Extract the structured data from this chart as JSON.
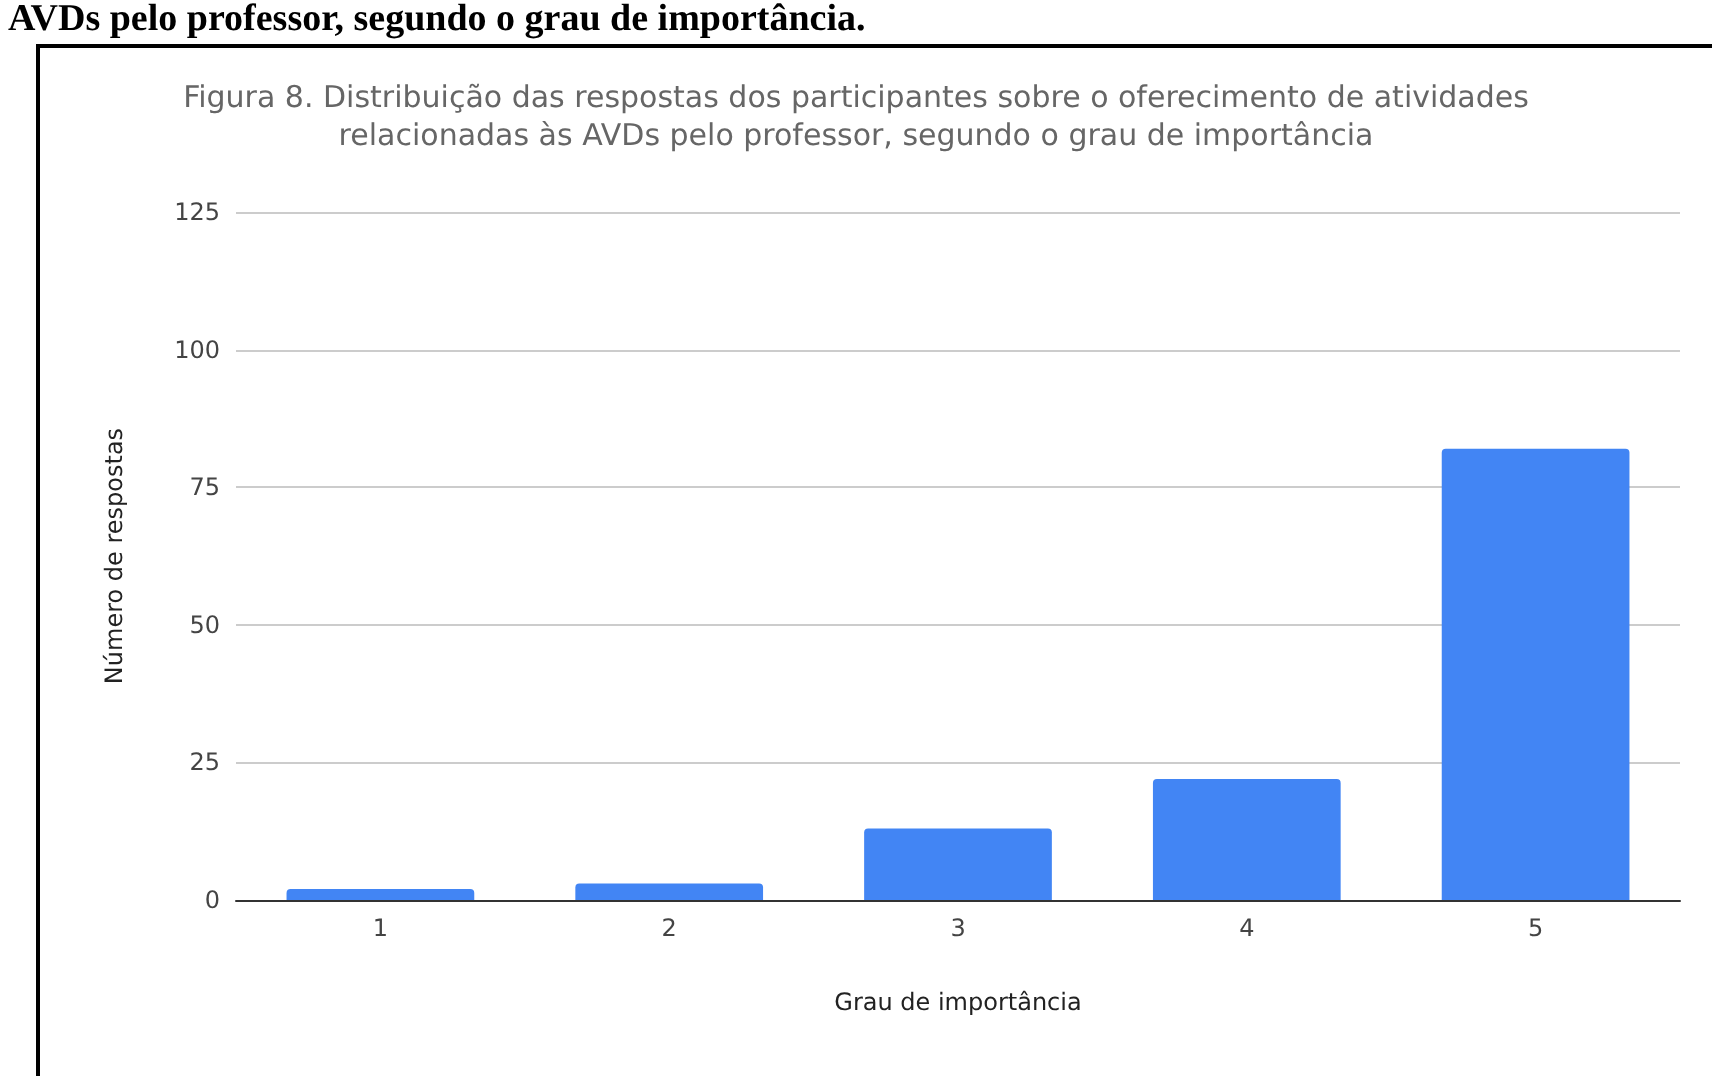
{
  "chart_data": {
    "type": "bar",
    "title": "Figura 8. Distribuição das respostas dos participantes sobre o oferecimento de atividades\nrelacionadas às AVDs pelo professor, segundo o grau de importância",
    "annotations": [
      "AVDs pelo professor, segundo o grau de importância."
    ],
    "xlabel": "Grau de importância",
    "ylabel": "Número de respostas",
    "categories": [
      "1",
      "2",
      "3",
      "4",
      "5"
    ],
    "values": [
      2,
      3,
      13,
      22,
      82
    ],
    "color": "#4285f4",
    "ylim": [
      0,
      125
    ],
    "yticks": [
      0,
      25,
      50,
      75,
      100,
      125
    ],
    "grid": "y"
  }
}
